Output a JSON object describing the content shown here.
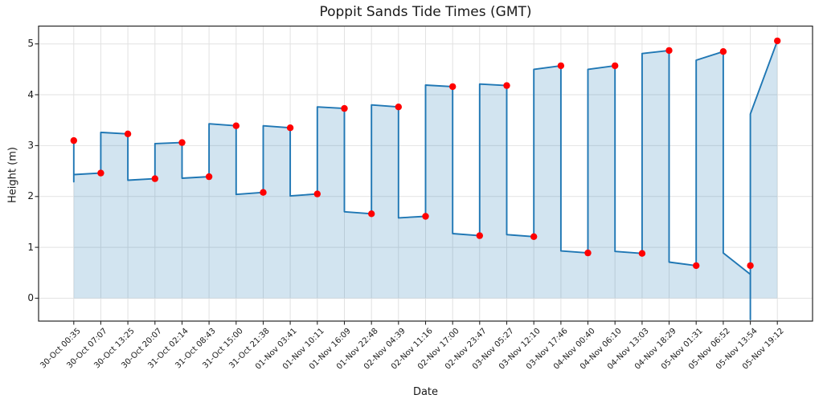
{
  "title": "Poppit Sands Tide Times (GMT)",
  "chart_data": {
    "type": "line",
    "title": "Poppit Sands Tide Times (GMT)",
    "xlabel": "Date",
    "ylabel": "Height (m)",
    "grid": true,
    "legend": "none",
    "categories": [
      "30-Oct 00:35",
      "30-Oct 07:07",
      "30-Oct 13:25",
      "30-Oct 20:07",
      "31-Oct 02:14",
      "31-Oct 08:43",
      "31-Oct 15:00",
      "31-Oct 21:38",
      "01-Nov 03:41",
      "01-Nov 10:11",
      "01-Nov 16:09",
      "01-Nov 22:48",
      "02-Nov 04:39",
      "02-Nov 11:16",
      "02-Nov 17:00",
      "02-Nov 23:47",
      "03-Nov 05:27",
      "03-Nov 12:10",
      "03-Nov 17:46",
      "04-Nov 00:40",
      "04-Nov 06:10",
      "04-Nov 13:03",
      "04-Nov 18:29",
      "05-Nov 01:31",
      "05-Nov 06:52",
      "05-Nov 13:54",
      "05-Nov 19:12"
    ],
    "heights_m": [
      3.1,
      2.46,
      3.23,
      2.35,
      3.06,
      2.39,
      3.39,
      2.08,
      3.35,
      2.05,
      3.73,
      1.66,
      3.76,
      1.61,
      4.16,
      1.23,
      4.18,
      1.21,
      4.57,
      0.89,
      4.57,
      0.88,
      4.87,
      0.64,
      4.85,
      0.64,
      5.06
    ],
    "line_path": [
      [
        0,
        2.29
      ],
      [
        0,
        3.1
      ],
      [
        0,
        2.43
      ],
      [
        1,
        2.46
      ],
      [
        1,
        3.26
      ],
      [
        2,
        3.23
      ],
      [
        2,
        2.32
      ],
      [
        3,
        2.35
      ],
      [
        3,
        3.04
      ],
      [
        4,
        3.06
      ],
      [
        4,
        2.36
      ],
      [
        5,
        2.39
      ],
      [
        5,
        3.43
      ],
      [
        6,
        3.39
      ],
      [
        6,
        2.04
      ],
      [
        7,
        2.08
      ],
      [
        7,
        3.39
      ],
      [
        8,
        3.35
      ],
      [
        8,
        2.01
      ],
      [
        9,
        2.05
      ],
      [
        9,
        3.76
      ],
      [
        10,
        3.73
      ],
      [
        10,
        1.7
      ],
      [
        11,
        1.66
      ],
      [
        11,
        3.8
      ],
      [
        12,
        3.76
      ],
      [
        12,
        1.58
      ],
      [
        13,
        1.61
      ],
      [
        13,
        4.19
      ],
      [
        14,
        4.16
      ],
      [
        14,
        1.27
      ],
      [
        15,
        1.23
      ],
      [
        15,
        4.21
      ],
      [
        16,
        4.18
      ],
      [
        16,
        1.25
      ],
      [
        17,
        1.21
      ],
      [
        17,
        4.5
      ],
      [
        18,
        4.57
      ],
      [
        18,
        0.93
      ],
      [
        19,
        0.89
      ],
      [
        19,
        4.5
      ],
      [
        20,
        4.57
      ],
      [
        20,
        0.92
      ],
      [
        21,
        0.88
      ],
      [
        21,
        4.81
      ],
      [
        22,
        4.87
      ],
      [
        22,
        0.71
      ],
      [
        23,
        0.64
      ],
      [
        23,
        4.68
      ],
      [
        24,
        4.85
      ],
      [
        24,
        0.89
      ],
      [
        25,
        0.47
      ],
      [
        25,
        -0.42
      ],
      [
        25,
        3.62
      ],
      [
        26,
        5.06
      ]
    ],
    "yticks": [
      0,
      1,
      2,
      3,
      4,
      5
    ],
    "ylim": [
      -0.45,
      5.35
    ],
    "xlim_index": [
      -1.3,
      27.3
    ],
    "fill_baseline": 0,
    "colors": {
      "line": "#1f77b4",
      "fill": "rgba(31,119,180,0.20)",
      "marker": "#ff0000",
      "grid": "#e2e2e2",
      "axis": "#262626",
      "text": "#1a1a1a"
    }
  }
}
